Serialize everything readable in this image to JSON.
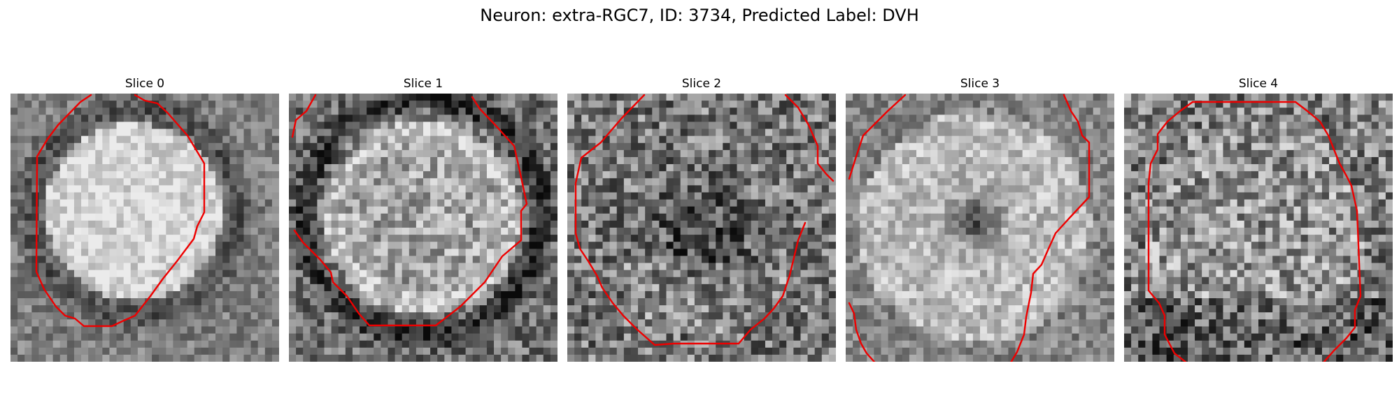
{
  "figure": {
    "title": "Neuron: extra-RGC7, ID: 3734, Predicted Label: DVH"
  },
  "colors": {
    "contour": "#ee0000",
    "pixel_dark": "#101010",
    "pixel_light": "#e6e6e6"
  },
  "grid_cells_per_side": 38,
  "panels": [
    {
      "title": "Slice 0",
      "texture": "bright_blob"
    },
    {
      "title": "Slice 1",
      "texture": "bright_ring"
    },
    {
      "title": "Slice 2",
      "texture": "dark_center"
    },
    {
      "title": "Slice 3",
      "texture": "dark_spot"
    },
    {
      "title": "Slice 4",
      "texture": "uniform_noise"
    }
  ]
}
